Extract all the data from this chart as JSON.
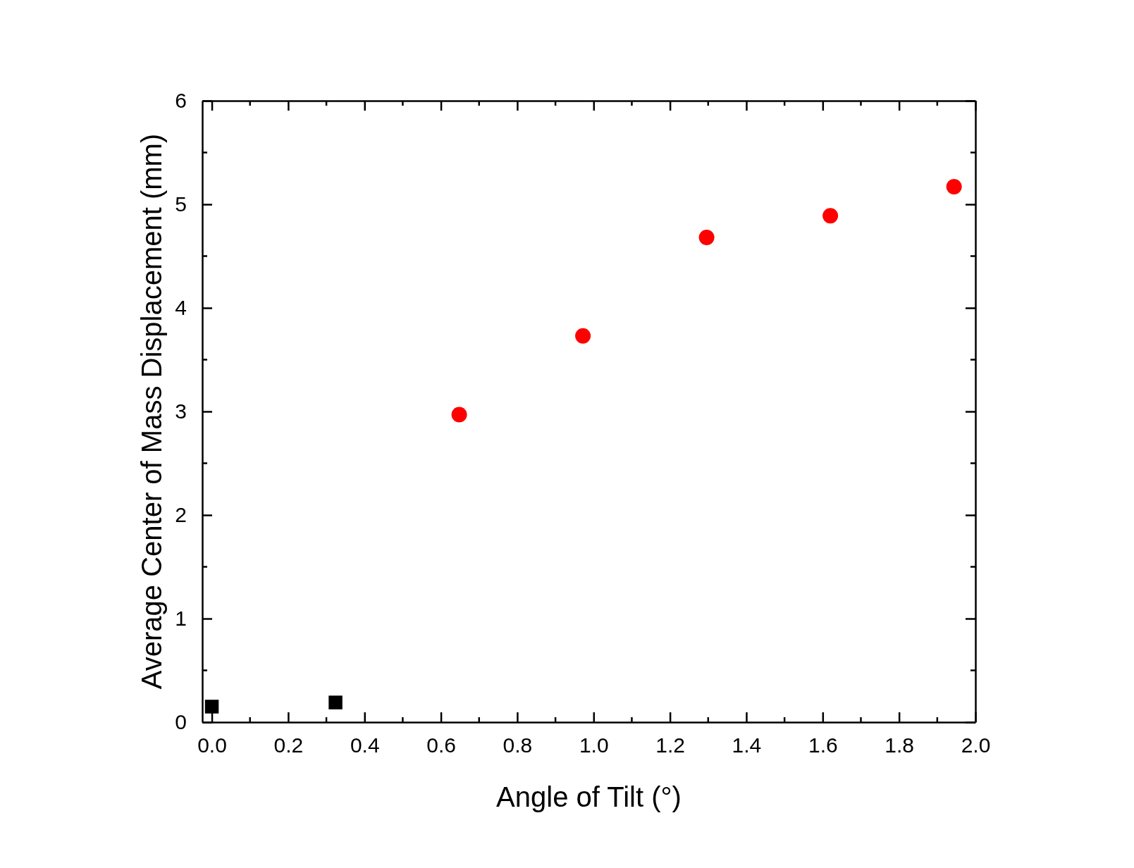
{
  "chart_data": {
    "type": "scatter",
    "xlabel": "Angle of Tilt (°)",
    "ylabel": "Average Center of Mass Displacement (mm)",
    "xlim": [
      -0.025,
      2.0
    ],
    "xticks": [
      {
        "value": 0,
        "label": "0.0"
      },
      {
        "value": 0.2,
        "label": "0.2"
      },
      {
        "value": 0.4,
        "label": "0.4"
      },
      {
        "value": 0.6,
        "label": "0.6"
      },
      {
        "value": 0.8,
        "label": "0.8"
      },
      {
        "value": 1.0,
        "label": "1.0"
      },
      {
        "value": 1.2,
        "label": "1.2"
      },
      {
        "value": 1.4,
        "label": "1.4"
      },
      {
        "value": 1.6,
        "label": "1.6"
      },
      {
        "value": 1.8,
        "label": "1.8"
      },
      {
        "value": 2.0,
        "label": "2.0"
      }
    ],
    "ylim": [
      0,
      6
    ],
    "yticks": [
      0,
      1,
      2,
      3,
      4,
      5,
      6
    ],
    "grid": false,
    "series": [
      {
        "color": "#000000",
        "marker": "square",
        "x": [
          0.0,
          0.324
        ],
        "values": [
          0.15,
          0.19
        ]
      },
      {
        "color": "#ff0000",
        "marker": "circle",
        "x": [
          0.648,
          0.972,
          1.296,
          1.62,
          1.944
        ],
        "values": [
          2.97,
          3.73,
          4.68,
          4.89,
          5.17
        ]
      }
    ]
  }
}
